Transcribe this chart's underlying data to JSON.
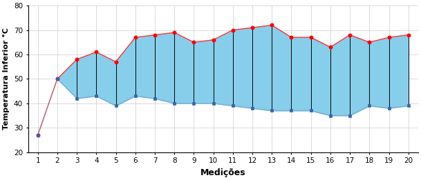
{
  "x": [
    1,
    2,
    3,
    4,
    5,
    6,
    7,
    8,
    9,
    10,
    11,
    12,
    13,
    14,
    15,
    16,
    17,
    18,
    19,
    20
  ],
  "max_vals": [
    27,
    50,
    58,
    61,
    57,
    67,
    68,
    69,
    65,
    66,
    70,
    71,
    72,
    67,
    67,
    63,
    68,
    65,
    67,
    68
  ],
  "min_vals": [
    27,
    50,
    42,
    43,
    39,
    43,
    42,
    40,
    40,
    40,
    39,
    38,
    37,
    37,
    37,
    35,
    35,
    39,
    38,
    39
  ],
  "xlabel": "Medições",
  "ylabel": "Temperatura Inferior °C",
  "ylim": [
    20,
    80
  ],
  "xlim": [
    0.5,
    20.5
  ],
  "fill_color": "#87CEEB",
  "fill_alpha": 1.0,
  "max_line_color": "#FF3333",
  "min_line_color": "#7799BB",
  "min_line_alpha": 0.6,
  "vline_color": "black",
  "vline_lw": 0.7,
  "marker_max_color": "#FF0000",
  "marker_min_color": "#3366AA",
  "bg_color": "#FFFFFF",
  "grid_color": "#CCCCCC",
  "yticks": [
    20,
    30,
    40,
    50,
    60,
    70,
    80
  ],
  "xticks": [
    1,
    2,
    3,
    4,
    5,
    6,
    7,
    8,
    9,
    10,
    11,
    12,
    13,
    14,
    15,
    16,
    17,
    18,
    19,
    20
  ],
  "fill_start_idx": 1
}
